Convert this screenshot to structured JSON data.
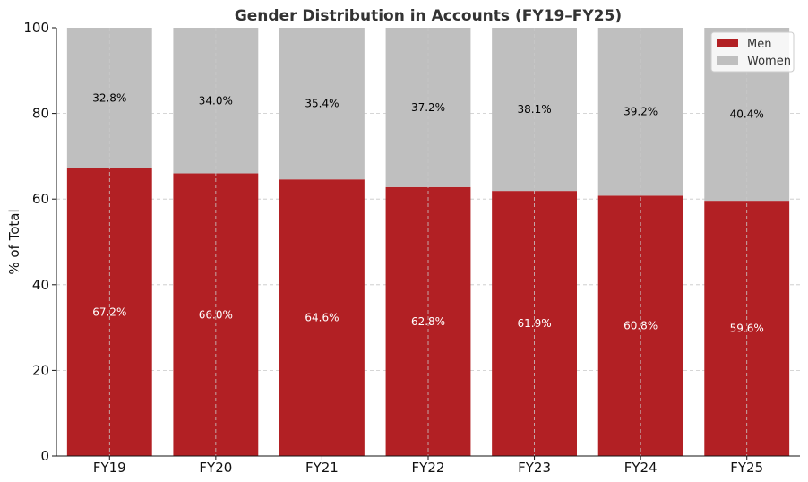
{
  "chart_data": {
    "type": "bar",
    "stacked": true,
    "title": "Gender Distribution in Accounts (FY19–FY25)",
    "xlabel": "",
    "ylabel": "% of Total",
    "ylim": [
      0,
      100
    ],
    "yticks": [
      0,
      20,
      40,
      60,
      80,
      100
    ],
    "grid": true,
    "legend_position": "top-right",
    "categories": [
      "FY19",
      "FY20",
      "FY21",
      "FY22",
      "FY23",
      "FY24",
      "FY25"
    ],
    "series": [
      {
        "name": "Men",
        "color": "#b22024",
        "label_color": "#ffffff",
        "values": [
          67.2,
          66.0,
          64.6,
          62.8,
          61.9,
          60.8,
          59.6
        ],
        "labels": [
          "67.2%",
          "66.0%",
          "64.6%",
          "62.8%",
          "61.9%",
          "60.8%",
          "59.6%"
        ]
      },
      {
        "name": "Women",
        "color": "#bfbfbf",
        "label_color": "#000000",
        "values": [
          32.8,
          34.0,
          35.4,
          37.2,
          38.1,
          39.2,
          40.4
        ],
        "labels": [
          "32.8%",
          "34.0%",
          "35.4%",
          "37.2%",
          "38.1%",
          "39.2%",
          "40.4%"
        ]
      }
    ]
  }
}
